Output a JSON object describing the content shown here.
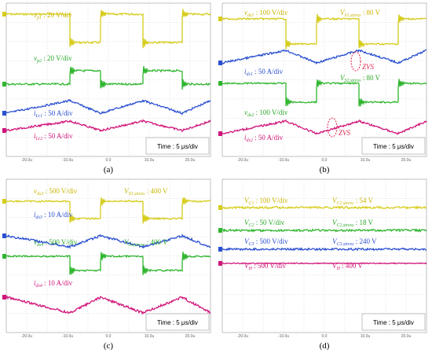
{
  "panels": [
    {
      "label": "(a)",
      "time": "Time : 5 μs/div",
      "xticks": [
        "-20.0u",
        "-10.0u",
        "0.0",
        "10.0u",
        "20.0u"
      ],
      "annotations": [
        {
          "main": "v",
          "sub": "p1",
          "rest": " : 20 V/div",
          "color": "#c9b400"
        },
        {
          "main": "v",
          "sub": "p2",
          "rest": " : 20 V/div",
          "color": "#2aa82a"
        },
        {
          "main": "i",
          "sub": "Lr1",
          "rest": " : 50 A/div",
          "color": "#2a4fd0"
        },
        {
          "main": "i",
          "sub": "Lr2",
          "rest": " : 50 A/div",
          "color": "#d0157a"
        }
      ]
    },
    {
      "label": "(b)",
      "time": "Time : 5 μs/div",
      "xticks": [
        "-20.0u",
        "-10.0u",
        "0.0",
        "10.0u",
        "20.0u"
      ],
      "annotations": [
        {
          "main": "v",
          "sub": "ds1",
          "rest": " : 100 V/div",
          "color": "#c9b400"
        },
        {
          "main": "V",
          "sub": "S1,stress",
          "rest": " : 80 V",
          "color": "#c9b400"
        },
        {
          "main": "ZVS",
          "sub": "",
          "rest": "",
          "color": "#e0204a"
        },
        {
          "main": "i",
          "sub": "ds1",
          "rest": " : 50 A/div",
          "color": "#2a4fd0"
        },
        {
          "main": "V",
          "sub": "S2,stress",
          "rest": " : 80 V",
          "color": "#2aa82a"
        },
        {
          "main": "v",
          "sub": "ds2",
          "rest": " : 100 V/div",
          "color": "#2aa82a"
        },
        {
          "main": "ZVS",
          "sub": "",
          "rest": "",
          "color": "#e0204a"
        },
        {
          "main": "i",
          "sub": "ds2",
          "rest": " : 50 A/div",
          "color": "#d0157a"
        }
      ]
    },
    {
      "label": "(c)",
      "time": "Time : 5 μs/div",
      "xticks": [
        "-20.0u",
        "-10.0u",
        "0.0",
        "10.0u",
        "20.0u"
      ],
      "annotations": [
        {
          "main": "v",
          "sub": "ds3",
          "rest": " : 500 V/div",
          "color": "#c9b400"
        },
        {
          "main": "V",
          "sub": "S3,stress",
          "rest": " : 400 V",
          "color": "#c9b400"
        },
        {
          "main": "i",
          "sub": "ds3",
          "rest": " : 10 A/div",
          "color": "#2a4fd0"
        },
        {
          "main": "v",
          "sub": "ds4",
          "rest": " : 500 V/div",
          "color": "#2aa82a"
        },
        {
          "main": "V",
          "sub": "S4,stress",
          "rest": " : 400 V",
          "color": "#2aa82a"
        },
        {
          "main": "i",
          "sub": "ds4",
          "rest": " : 10 A/div",
          "color": "#d0157a"
        }
      ]
    },
    {
      "label": "(d)",
      "time": "Time : 5 μs/div",
      "xticks": [
        "-20.0u",
        "-10.0u",
        "0.0",
        "10.0u",
        "20.0u"
      ],
      "annotations": [
        {
          "main": "V",
          "sub": "C1",
          "rest": " : 100 V/div",
          "color": "#c9b400"
        },
        {
          "main": "V",
          "sub": "C1,stress",
          "rest": " : 54 V",
          "color": "#c9b400"
        },
        {
          "main": "V",
          "sub": "C2",
          "rest": " : 50 V/div",
          "color": "#2aa82a"
        },
        {
          "main": "V",
          "sub": "C2,stress",
          "rest": " : 18 V",
          "color": "#2aa82a"
        },
        {
          "main": "V",
          "sub": "C3",
          "rest": " : 500 V/div",
          "color": "#2a4fd0"
        },
        {
          "main": "V",
          "sub": "C3,stress",
          "rest": " : 240 V",
          "color": "#2a4fd0"
        },
        {
          "main": "V",
          "sub": "H",
          "rest": " : 500 V/div",
          "color": "#d0157a"
        },
        {
          "main": "V",
          "sub": "H",
          "rest": " : 400 V",
          "color": "#d0157a"
        }
      ]
    }
  ]
}
